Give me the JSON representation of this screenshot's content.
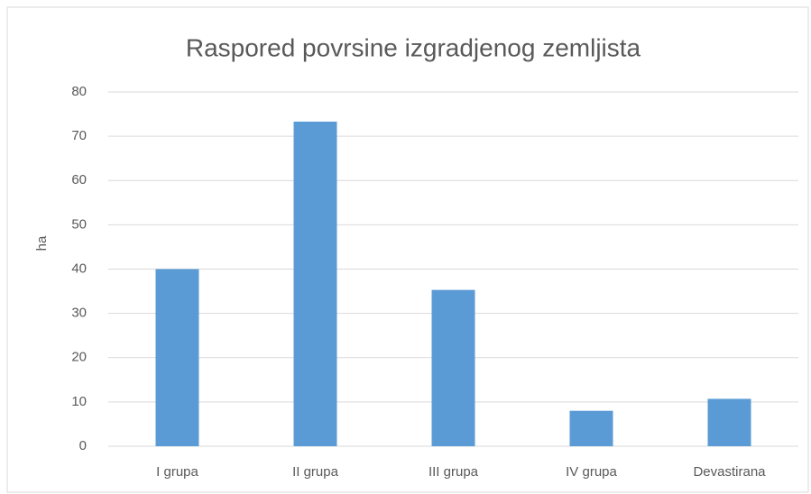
{
  "chart_data": {
    "type": "bar",
    "title": "Raspored povrsine izgradjenog zemljista",
    "y_label": "ha",
    "categories": [
      "I grupa",
      "II grupa",
      "III grupa",
      "IV grupa",
      "Devastirana"
    ],
    "values": [
      40,
      73.3,
      35.3,
      8,
      10.7
    ],
    "color": "#5b9bd5",
    "ylim": [
      0,
      80
    ],
    "yticks": [
      0,
      10,
      20,
      30,
      40,
      50,
      60,
      70,
      80
    ],
    "grid": true
  }
}
